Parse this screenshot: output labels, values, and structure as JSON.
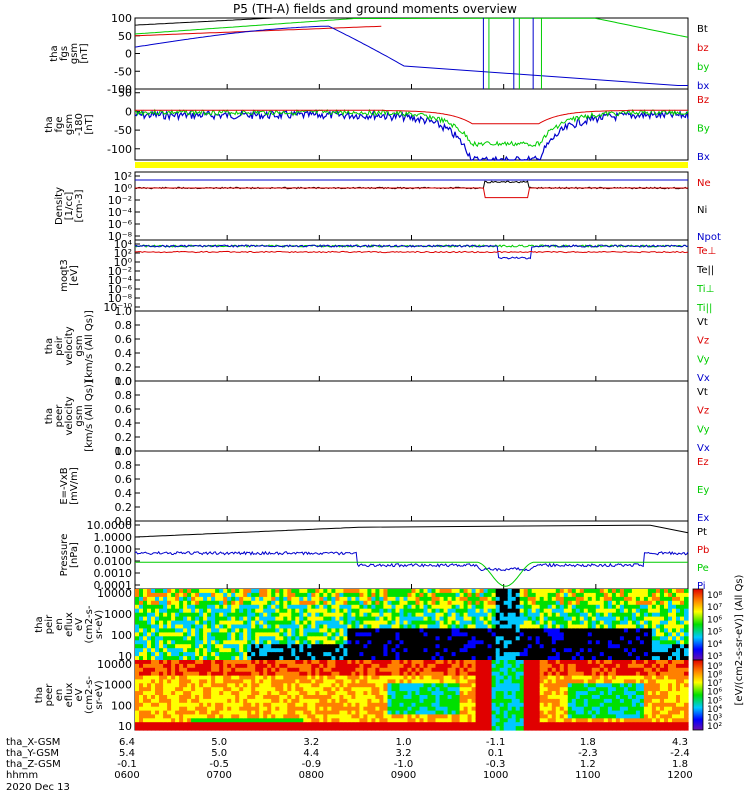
{
  "title": "P5 (TH-A) fields and ground moments overview",
  "date": "2020 Dec 13",
  "chart_data": [
    {
      "type": "line",
      "id": "fgs",
      "ylabel_lines": [
        "tha",
        "fgs",
        "gsm",
        "[nT]"
      ],
      "ylim": [
        -100,
        100
      ],
      "yticks": [
        100,
        50,
        0,
        -50,
        -100
      ],
      "legend": [
        {
          "label": "Bt",
          "color": "#000000"
        },
        {
          "label": "bz",
          "color": "#dd0000"
        },
        {
          "label": "by",
          "color": "#00cc00"
        },
        {
          "label": "bx",
          "color": "#0000cc"
        }
      ]
    },
    {
      "type": "line",
      "id": "fge",
      "ylabel_lines": [
        "tha",
        "fge",
        "gsm",
        "-180",
        "[nT]"
      ],
      "ylim": [
        -130,
        60
      ],
      "yticks": [
        50,
        0,
        -50,
        -100
      ],
      "legend": [
        {
          "label": "Bz",
          "color": "#dd0000"
        },
        {
          "label": "By",
          "color": "#00cc00"
        },
        {
          "label": "Bx",
          "color": "#0000cc"
        }
      ]
    },
    {
      "type": "line",
      "id": "density",
      "scale": "log",
      "ylabel_lines": [
        "Density",
        "[1/cc]",
        "[cm-3]"
      ],
      "yticks_text": [
        "10²",
        "10⁰",
        "10⁻²",
        "10⁻⁴",
        "10⁻⁶",
        "10⁻⁸"
      ],
      "legend": [
        {
          "label": "Ne",
          "color": "#dd0000"
        },
        {
          "label": "Ni",
          "color": "#000000"
        },
        {
          "label": "Npot",
          "color": "#0000cc"
        }
      ]
    },
    {
      "type": "line",
      "id": "temp",
      "scale": "log",
      "ylabel_lines": [
        "moqt3",
        "[eV]"
      ],
      "yticks_text": [
        "10⁴",
        "10²",
        "10⁰",
        "10⁻²",
        "10⁻⁴",
        "10⁻⁶",
        "10⁻⁸",
        "10⁻¹⁰"
      ],
      "legend": [
        {
          "label": "Te⊥",
          "color": "#dd0000"
        },
        {
          "label": "Te||",
          "color": "#000000"
        },
        {
          "label": "Ti⊥",
          "color": "#00cc00"
        },
        {
          "label": "Ti||",
          "color": "#00cc00"
        }
      ]
    },
    {
      "type": "line",
      "id": "peir_v",
      "ylabel_lines": [
        "tha",
        "peir",
        "velocity",
        "gsm",
        "[km/s (All Qs)]"
      ],
      "ylim": [
        0,
        1
      ],
      "yticks": [
        1.0,
        0.8,
        0.6,
        0.4,
        0.2,
        0.0
      ],
      "legend": [
        {
          "label": "Vt",
          "color": "#000000"
        },
        {
          "label": "Vz",
          "color": "#dd0000"
        },
        {
          "label": "Vy",
          "color": "#00cc00"
        },
        {
          "label": "Vx",
          "color": "#0000cc"
        }
      ]
    },
    {
      "type": "line",
      "id": "peer_v",
      "ylabel_lines": [
        "tha",
        "peer",
        "velocity",
        "gsm",
        "[km/s (All Qs)]"
      ],
      "ylim": [
        0,
        1
      ],
      "yticks": [
        1.0,
        0.8,
        0.6,
        0.4,
        0.2,
        0.0
      ],
      "legend": [
        {
          "label": "Vt",
          "color": "#000000"
        },
        {
          "label": "Vz",
          "color": "#dd0000"
        },
        {
          "label": "Vy",
          "color": "#00cc00"
        },
        {
          "label": "Vx",
          "color": "#0000cc"
        }
      ]
    },
    {
      "type": "line",
      "id": "efield",
      "ylabel_lines": [
        "E=-VxB",
        "[mV/m]"
      ],
      "ylim": [
        0,
        1
      ],
      "yticks": [
        1.0,
        0.8,
        0.6,
        0.4,
        0.2,
        0.0
      ],
      "legend": [
        {
          "label": "Ez",
          "color": "#dd0000"
        },
        {
          "label": "Ey",
          "color": "#00cc00"
        },
        {
          "label": "Ex",
          "color": "#0000cc"
        }
      ]
    },
    {
      "type": "line",
      "id": "pressure",
      "scale": "log",
      "ylabel_lines": [
        "Pressure",
        "[nPa]"
      ],
      "yticks_text": [
        "10.0000",
        "1.0000",
        "0.1000",
        "0.0100",
        "0.0010",
        "0.0001"
      ],
      "legend": [
        {
          "label": "Pt",
          "color": "#000000"
        },
        {
          "label": "Pb",
          "color": "#dd0000"
        },
        {
          "label": "Pe",
          "color": "#00cc00"
        },
        {
          "label": "Pi",
          "color": "#0000cc"
        }
      ]
    },
    {
      "type": "heatmap",
      "id": "peir_spec",
      "ylabel_lines": [
        "tha",
        "peir",
        "en",
        "eflux",
        "eV",
        "(cm2-s-",
        "sr-eV)"
      ],
      "yticks_text": [
        "10000",
        "1000",
        "100",
        "10"
      ],
      "colorbar_ticks": [
        "10⁸",
        "10⁷",
        "10⁶",
        "10⁵",
        "10⁴",
        "10³"
      ]
    },
    {
      "type": "heatmap",
      "id": "peer_spec",
      "ylabel_lines": [
        "tha",
        "peer",
        "en",
        "eflux",
        "eV",
        "(cm2-s-",
        "sr-eV)"
      ],
      "yticks_text": [
        "10000",
        "1000",
        "100",
        "10"
      ],
      "colorbar_ticks": [
        "10⁹",
        "10⁸",
        "10⁷",
        "10⁶",
        "10⁵",
        "10⁴",
        "10³",
        "10²"
      ]
    }
  ],
  "colorbar_label": "[eV/(cm2-s-sr-eV)] (All Qs)",
  "xaxis": {
    "row_labels": [
      "tha_X-GSM",
      "tha_Y-GSM",
      "tha_Z-GSM",
      "hhmm"
    ],
    "columns": [
      {
        "x": "6.4",
        "y": "5.4",
        "z": "-0.1",
        "t": "0600"
      },
      {
        "x": "5.0",
        "y": "5.0",
        "z": "-0.5",
        "t": "0700"
      },
      {
        "x": "3.2",
        "y": "4.4",
        "z": "-0.9",
        "t": "0800"
      },
      {
        "x": "1.0",
        "y": "3.2",
        "z": "-1.0",
        "t": "0900"
      },
      {
        "x": "-1.1",
        "y": "0.1",
        "z": "-0.3",
        "t": "1000"
      },
      {
        "x": "1.8",
        "y": "-2.3",
        "z": "1.2",
        "t": "1100"
      },
      {
        "x": "4.3",
        "y": "-2.4",
        "z": "1.8",
        "t": "1200"
      }
    ]
  }
}
